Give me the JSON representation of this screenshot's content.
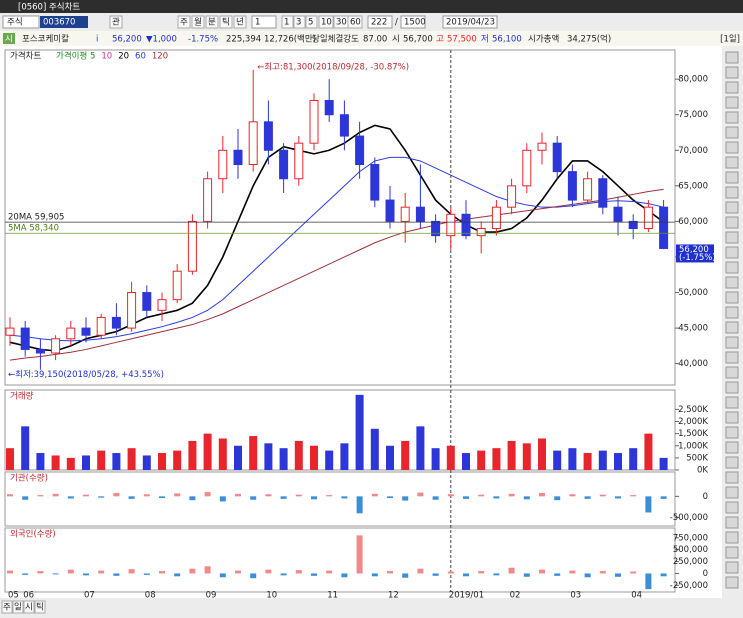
{
  "window": {
    "title": "[0560] 주식차트"
  },
  "toolbar": {
    "market": "주식",
    "code": "003670",
    "buttons": [
      "관",
      "주",
      "월",
      "분",
      "틱",
      "년"
    ],
    "unit": "1",
    "periods": [
      "1",
      "3",
      "5",
      "10",
      "30",
      "60"
    ],
    "count": "222",
    "total": "1500",
    "date": "2019/04/23"
  },
  "info": {
    "badge": "시",
    "name": "포스코케미칼",
    "icon": "i",
    "price": "56,200",
    "change": "▼1,000",
    "rate": "-1.75%",
    "volume": "225,394",
    "amount": "12,726(백만)",
    "strength_label": "당일체결강도",
    "strength": "87.00",
    "open_label": "시",
    "open": "56,700",
    "high_label": "고",
    "high": "57,500",
    "low_label": "저",
    "low": "56,100",
    "cap_label": "시가총액",
    "cap": "34,275(억)",
    "period": "[1일]"
  },
  "footer": {
    "buttons": [
      "주",
      "일",
      "시",
      "틱"
    ]
  },
  "chart_data": [
    {
      "type": "candlestick",
      "title": "가격차트",
      "up_color": "#e8242c",
      "down_color": "#2d36d6",
      "categories": [
        "05",
        "06",
        null,
        null,
        null,
        "07",
        null,
        null,
        null,
        "08",
        null,
        null,
        null,
        "09",
        null,
        null,
        null,
        "10",
        null,
        null,
        null,
        "11",
        null,
        null,
        null,
        "12",
        null,
        null,
        null,
        "2019/01",
        null,
        null,
        null,
        "02",
        null,
        null,
        null,
        "03",
        null,
        null,
        null,
        "04",
        null,
        null
      ],
      "open": [
        44000,
        45000,
        42000,
        41500,
        43500,
        45000,
        44000,
        46500,
        45000,
        50000,
        47500,
        49000,
        53000,
        60000,
        66000,
        70000,
        68000,
        74000,
        70000,
        66000,
        71000,
        77000,
        75000,
        72000,
        68000,
        63000,
        60000,
        62000,
        60000,
        58000,
        61000,
        58000,
        59000,
        62000,
        65000,
        70000,
        71000,
        67000,
        63000,
        66000,
        62000,
        60000,
        59000,
        62000
      ],
      "high": [
        46500,
        46000,
        43500,
        44000,
        46000,
        46500,
        47000,
        48500,
        51500,
        51000,
        50000,
        54000,
        61000,
        67000,
        72000,
        73000,
        81300,
        77000,
        71000,
        72000,
        78000,
        80000,
        77000,
        74000,
        69000,
        65000,
        64000,
        68000,
        61000,
        62000,
        63000,
        60000,
        63000,
        66000,
        71000,
        72500,
        72000,
        68000,
        67000,
        66500,
        63500,
        61000,
        63000,
        63000
      ],
      "low": [
        42500,
        41000,
        39150,
        40500,
        42500,
        43000,
        43500,
        44000,
        44500,
        46500,
        46000,
        48500,
        52500,
        59000,
        64000,
        66000,
        67000,
        68000,
        64000,
        65000,
        70000,
        74000,
        70000,
        66000,
        62000,
        59000,
        57000,
        59000,
        57000,
        56000,
        57500,
        55500,
        58000,
        61000,
        64000,
        68000,
        66000,
        62000,
        62500,
        61000,
        58000,
        57500,
        58500,
        56100
      ],
      "close": [
        45000,
        42000,
        41500,
        43500,
        45000,
        44000,
        46500,
        45000,
        50000,
        47500,
        49000,
        53000,
        60000,
        66000,
        70000,
        68000,
        74000,
        70000,
        66000,
        71000,
        77000,
        75000,
        72000,
        68000,
        63000,
        60000,
        62000,
        60000,
        58000,
        61000,
        58000,
        59000,
        62000,
        65000,
        70000,
        71000,
        67000,
        63000,
        66000,
        62000,
        60000,
        59000,
        62000,
        56200
      ],
      "legend": [
        {
          "label": "가격이평 5",
          "color": "#1a8a1a"
        },
        {
          "label": "10",
          "color": "#d02a9a"
        }
      ],
      "series": [
        {
          "name": "20",
          "color": "#000000",
          "values": [
            43000,
            42500,
            42000,
            41800,
            42500,
            43500,
            44000,
            44500,
            45500,
            46500,
            47000,
            47500,
            48500,
            51000,
            55000,
            60000,
            65000,
            69000,
            70500,
            70000,
            69500,
            70000,
            71000,
            72500,
            73500,
            73000,
            70000,
            66500,
            63000,
            61000,
            59500,
            58500,
            58500,
            59000,
            60500,
            63000,
            66000,
            68500,
            68500,
            67000,
            65000,
            63000,
            61500,
            59905
          ]
        },
        {
          "name": "60",
          "color": "#2b3be0",
          "values": [
            44000,
            43800,
            43500,
            43300,
            43200,
            43300,
            43500,
            43800,
            44200,
            44700,
            45200,
            45800,
            46500,
            47500,
            49000,
            51000,
            53000,
            55000,
            57000,
            59000,
            61000,
            63000,
            65000,
            67000,
            68500,
            69000,
            69000,
            68500,
            67500,
            66500,
            65500,
            64500,
            63500,
            62800,
            62300,
            62000,
            62000,
            62200,
            62500,
            62800,
            62900,
            62800,
            62500,
            62000
          ]
        },
        {
          "name": "120",
          "color": "#a0303a",
          "values": [
            40500,
            40800,
            41000,
            41300,
            41600,
            42000,
            42500,
            43000,
            43500,
            44000,
            44500,
            45000,
            45500,
            46200,
            47000,
            48000,
            49000,
            50000,
            51000,
            52000,
            53000,
            54000,
            55000,
            56000,
            57000,
            57800,
            58500,
            59000,
            59500,
            60000,
            60300,
            60600,
            60900,
            61200,
            61500,
            61800,
            62100,
            62400,
            62700,
            63000,
            63400,
            63800,
            64200,
            64500
          ]
        }
      ],
      "ma_levels": [
        {
          "value": 59905,
          "label": "20MA 59,905"
        },
        {
          "value": 58340,
          "label": "5MA 58,340"
        }
      ],
      "high_note": "←최고:81,300(2018/09/28, -30.87%)",
      "low_note": "←최저:39,150(2018/05/28, +43.55%)",
      "last": {
        "value": 56200,
        "label": "56,200",
        "change": "(-1.75%)"
      },
      "ylim": [
        37000,
        84100
      ],
      "yticks": [
        {
          "value": 40000,
          "label": "40,000"
        },
        {
          "value": 45000,
          "label": "45,000"
        },
        {
          "value": 50000,
          "label": "50,000"
        },
        {
          "value": 55000,
          "label": "55,000"
        },
        {
          "value": 60000,
          "label": "60,000"
        },
        {
          "value": 65000,
          "label": "65,000"
        },
        {
          "value": 70000,
          "label": "70,000"
        },
        {
          "value": 75000,
          "label": "75,000"
        },
        {
          "value": 80000,
          "label": "80,000"
        }
      ]
    },
    {
      "type": "volume",
      "title": "거래량",
      "values": [
        900,
        1800,
        700,
        600,
        500,
        600,
        800,
        700,
        900,
        600,
        700,
        800,
        1200,
        1500,
        1300,
        1000,
        1400,
        1100,
        900,
        1200,
        1000,
        800,
        1100,
        3100,
        1700,
        1000,
        1200,
        1800,
        900,
        1000,
        700,
        800,
        900,
        1200,
        1100,
        1300,
        800,
        900,
        700,
        800,
        700,
        900,
        1500,
        500
      ],
      "ylim": [
        0,
        3300
      ],
      "yticks": [
        {
          "value": 0,
          "label": "0K"
        },
        {
          "value": 500,
          "label": "500K"
        },
        {
          "value": 1000,
          "label": "1,000K"
        },
        {
          "value": 1500,
          "label": "1,500K"
        },
        {
          "value": 2000,
          "label": "2,000K"
        },
        {
          "value": 2500,
          "label": "2,500K"
        }
      ]
    },
    {
      "type": "netbar",
      "title": "기관(수량)",
      "pos_color": "#f08a8a",
      "neg_color": "#3a8fd8",
      "values": [
        50000,
        -80000,
        30000,
        60000,
        -50000,
        40000,
        -30000,
        80000,
        -60000,
        50000,
        -40000,
        70000,
        -90000,
        100000,
        -120000,
        60000,
        -80000,
        50000,
        -60000,
        40000,
        -70000,
        30000,
        -50000,
        -400000,
        60000,
        -40000,
        -100000,
        90000,
        -80000,
        50000,
        -60000,
        40000,
        -50000,
        60000,
        -70000,
        80000,
        -90000,
        50000,
        -60000,
        40000,
        -50000,
        30000,
        -380000,
        -60000
      ],
      "ylim": [
        -700000,
        575000
      ],
      "yticks": [
        0,
        {
          "value": -500000,
          "label": "-500,000"
        }
      ]
    },
    {
      "type": "netbar",
      "title": "외국인(수량)",
      "pos_color": "#f08a8a",
      "neg_color": "#3a8fd8",
      "values": [
        60000,
        -30000,
        50000,
        -20000,
        80000,
        -40000,
        60000,
        -50000,
        90000,
        -30000,
        50000,
        -60000,
        100000,
        150000,
        -80000,
        60000,
        -100000,
        80000,
        -40000,
        70000,
        -50000,
        60000,
        -80000,
        800000,
        -60000,
        50000,
        -90000,
        100000,
        -50000,
        40000,
        -60000,
        50000,
        -40000,
        120000,
        -70000,
        80000,
        -50000,
        60000,
        -80000,
        50000,
        -70000,
        40000,
        -330000,
        -60000
      ],
      "ylim": [
        -390000,
        955000
      ],
      "yticks": [
        {
          "value": -250000,
          "label": "-250,000"
        },
        0,
        {
          "value": 250000,
          "label": "250,000"
        },
        {
          "value": 500000,
          "label": "500,000"
        },
        {
          "value": 750000,
          "label": "750,000"
        }
      ]
    }
  ]
}
